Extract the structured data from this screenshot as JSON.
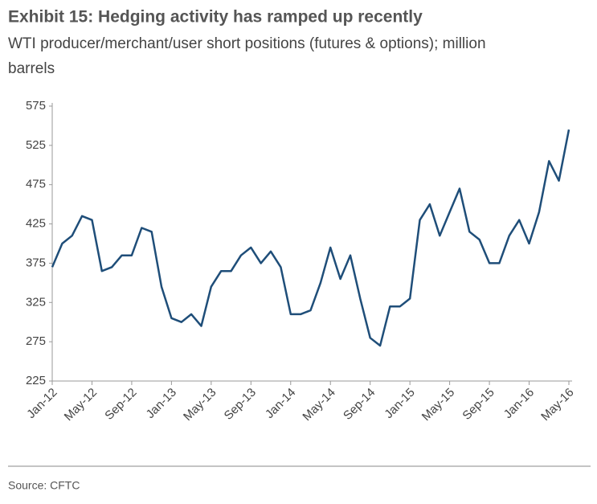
{
  "chart_data": {
    "type": "line",
    "title": "Exhibit 15: Hedging activity has ramped up recently",
    "subtitle": [
      "WTI producer/merchant/user short positions (futures & options); million",
      "barrels"
    ],
    "source": "Source: CFTC",
    "categories": [
      "Jan-12",
      null,
      null,
      null,
      "May-12",
      null,
      null,
      null,
      "Sep-12",
      null,
      null,
      null,
      "Jan-13",
      null,
      null,
      null,
      "May-13",
      null,
      null,
      null,
      "Sep-13",
      null,
      null,
      null,
      "Jan-14",
      null,
      null,
      null,
      "May-14",
      null,
      null,
      null,
      "Sep-14",
      null,
      null,
      null,
      "Jan-15",
      null,
      null,
      null,
      "May-15",
      null,
      null,
      null,
      "Sep-15",
      null,
      null,
      null,
      "Jan-16",
      null,
      null,
      null,
      "May-16"
    ],
    "series": [
      {
        "name": "WTI producer/merchant/user short positions",
        "color": "#1f4e79",
        "values": [
          370,
          400,
          410,
          435,
          430,
          365,
          370,
          385,
          385,
          420,
          415,
          345,
          305,
          300,
          310,
          295,
          345,
          365,
          365,
          385,
          395,
          375,
          390,
          370,
          310,
          310,
          315,
          350,
          395,
          355,
          385,
          330,
          280,
          270,
          320,
          320,
          330,
          430,
          450,
          410,
          440,
          470,
          415,
          405,
          375,
          375,
          410,
          430,
          400,
          440,
          505,
          480,
          545
        ]
      }
    ],
    "ylim": [
      225,
      575
    ],
    "yticks": [
      225,
      275,
      325,
      375,
      425,
      475,
      525,
      575
    ],
    "grid": false
  }
}
